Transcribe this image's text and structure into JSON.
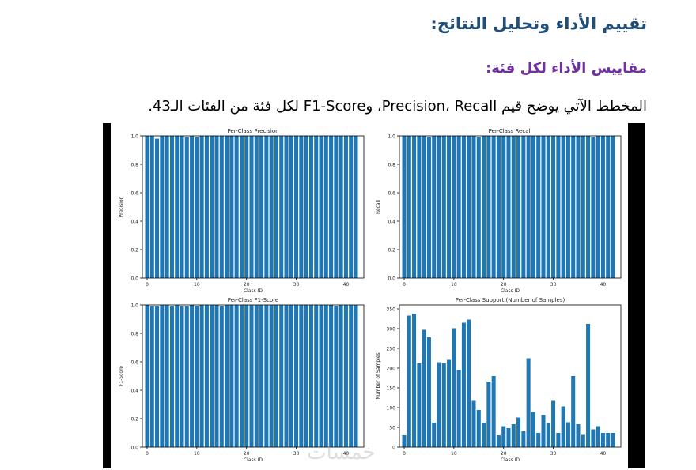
{
  "document": {
    "heading": "تقييم الأداء وتحليل النتائج:",
    "subheading": "مقاييس الأداء لكل فئة:",
    "paragraph": "المخطط الآتي يوضح قيم Precision، Recall، وF1-Score لكل فئة من الفئات الـ43."
  },
  "watermark": "خمسات",
  "chart_data": [
    {
      "type": "bar",
      "title": "Per-Class Precision",
      "xlabel": "Class ID",
      "ylabel": "Precision",
      "ylim": [
        0,
        1.0
      ],
      "yticks": [
        "0.0",
        "0.2",
        "0.4",
        "0.6",
        "0.8",
        "1.0"
      ],
      "xticks": [
        "0",
        "10",
        "20",
        "30",
        "40"
      ],
      "color": "#1f77b4",
      "x": [
        0,
        1,
        2,
        3,
        4,
        5,
        6,
        7,
        8,
        9,
        10,
        11,
        12,
        13,
        14,
        15,
        16,
        17,
        18,
        19,
        20,
        21,
        22,
        23,
        24,
        25,
        26,
        27,
        28,
        29,
        30,
        31,
        32,
        33,
        34,
        35,
        36,
        37,
        38,
        39,
        40,
        41,
        42
      ],
      "values": [
        1.0,
        1.0,
        0.98,
        1.0,
        1.0,
        1.0,
        1.0,
        1.0,
        0.99,
        1.0,
        0.99,
        1.0,
        1.0,
        1.0,
        1.0,
        1.0,
        1.0,
        1.0,
        1.0,
        1.0,
        1.0,
        1.0,
        1.0,
        1.0,
        1.0,
        1.0,
        1.0,
        1.0,
        1.0,
        1.0,
        1.0,
        1.0,
        1.0,
        1.0,
        1.0,
        1.0,
        1.0,
        1.0,
        1.0,
        1.0,
        1.0,
        1.0,
        1.0
      ]
    },
    {
      "type": "bar",
      "title": "Per-Class Recall",
      "xlabel": "Class ID",
      "ylabel": "Recall",
      "ylim": [
        0,
        1.0
      ],
      "yticks": [
        "0.0",
        "0.2",
        "0.4",
        "0.6",
        "0.8",
        "1.0"
      ],
      "xticks": [
        "0",
        "10",
        "20",
        "30",
        "40"
      ],
      "color": "#1f77b4",
      "x": [
        0,
        1,
        2,
        3,
        4,
        5,
        6,
        7,
        8,
        9,
        10,
        11,
        12,
        13,
        14,
        15,
        16,
        17,
        18,
        19,
        20,
        21,
        22,
        23,
        24,
        25,
        26,
        27,
        28,
        29,
        30,
        31,
        32,
        33,
        34,
        35,
        36,
        37,
        38,
        39,
        40,
        41,
        42
      ],
      "values": [
        1.0,
        1.0,
        1.0,
        1.0,
        1.0,
        0.99,
        1.0,
        1.0,
        1.0,
        1.0,
        1.0,
        1.0,
        1.0,
        1.0,
        1.0,
        0.99,
        1.0,
        1.0,
        1.0,
        1.0,
        1.0,
        1.0,
        1.0,
        1.0,
        1.0,
        1.0,
        1.0,
        1.0,
        1.0,
        1.0,
        1.0,
        1.0,
        1.0,
        1.0,
        1.0,
        1.0,
        1.0,
        1.0,
        0.99,
        1.0,
        1.0,
        1.0,
        1.0
      ]
    },
    {
      "type": "bar",
      "title": "Per-Class F1-Score",
      "xlabel": "Class ID",
      "ylabel": "F1-Score",
      "ylim": [
        0,
        1.0
      ],
      "yticks": [
        "0.0",
        "0.2",
        "0.4",
        "0.6",
        "0.8",
        "1.0"
      ],
      "xticks": [
        "0",
        "10",
        "20",
        "30",
        "40"
      ],
      "color": "#1f77b4",
      "x": [
        0,
        1,
        2,
        3,
        4,
        5,
        6,
        7,
        8,
        9,
        10,
        11,
        12,
        13,
        14,
        15,
        16,
        17,
        18,
        19,
        20,
        21,
        22,
        23,
        24,
        25,
        26,
        27,
        28,
        29,
        30,
        31,
        32,
        33,
        34,
        35,
        36,
        37,
        38,
        39,
        40,
        41,
        42
      ],
      "values": [
        1.0,
        0.99,
        0.99,
        1.0,
        1.0,
        0.99,
        1.0,
        0.99,
        0.99,
        1.0,
        0.99,
        1.0,
        1.0,
        1.0,
        1.0,
        0.99,
        1.0,
        1.0,
        1.0,
        1.0,
        1.0,
        1.0,
        1.0,
        1.0,
        1.0,
        1.0,
        1.0,
        1.0,
        1.0,
        1.0,
        1.0,
        1.0,
        1.0,
        1.0,
        1.0,
        1.0,
        1.0,
        1.0,
        0.99,
        1.0,
        1.0,
        1.0,
        1.0
      ]
    },
    {
      "type": "bar",
      "title": "Per-Class Support (Number of Samples)",
      "xlabel": "Class ID",
      "ylabel": "Number of Samples",
      "ylim": [
        0,
        360
      ],
      "yticks": [
        "0",
        "50",
        "100",
        "150",
        "200",
        "250",
        "300",
        "350"
      ],
      "xticks": [
        "0",
        "10",
        "20",
        "30",
        "40"
      ],
      "color": "#1f77b4",
      "x": [
        0,
        1,
        2,
        3,
        4,
        5,
        6,
        7,
        8,
        9,
        10,
        11,
        12,
        13,
        14,
        15,
        16,
        17,
        18,
        19,
        20,
        21,
        22,
        23,
        24,
        25,
        26,
        27,
        28,
        29,
        30,
        31,
        32,
        33,
        34,
        35,
        36,
        37,
        38,
        39,
        40,
        41,
        42
      ],
      "values": [
        30,
        333,
        338,
        212,
        297,
        278,
        62,
        215,
        212,
        221,
        301,
        196,
        315,
        323,
        117,
        94,
        62,
        166,
        180,
        30,
        53,
        48,
        58,
        75,
        40,
        225,
        89,
        36,
        81,
        61,
        117,
        36,
        103,
        63,
        180,
        58,
        31,
        312,
        45,
        53,
        36,
        36,
        36
      ]
    }
  ]
}
